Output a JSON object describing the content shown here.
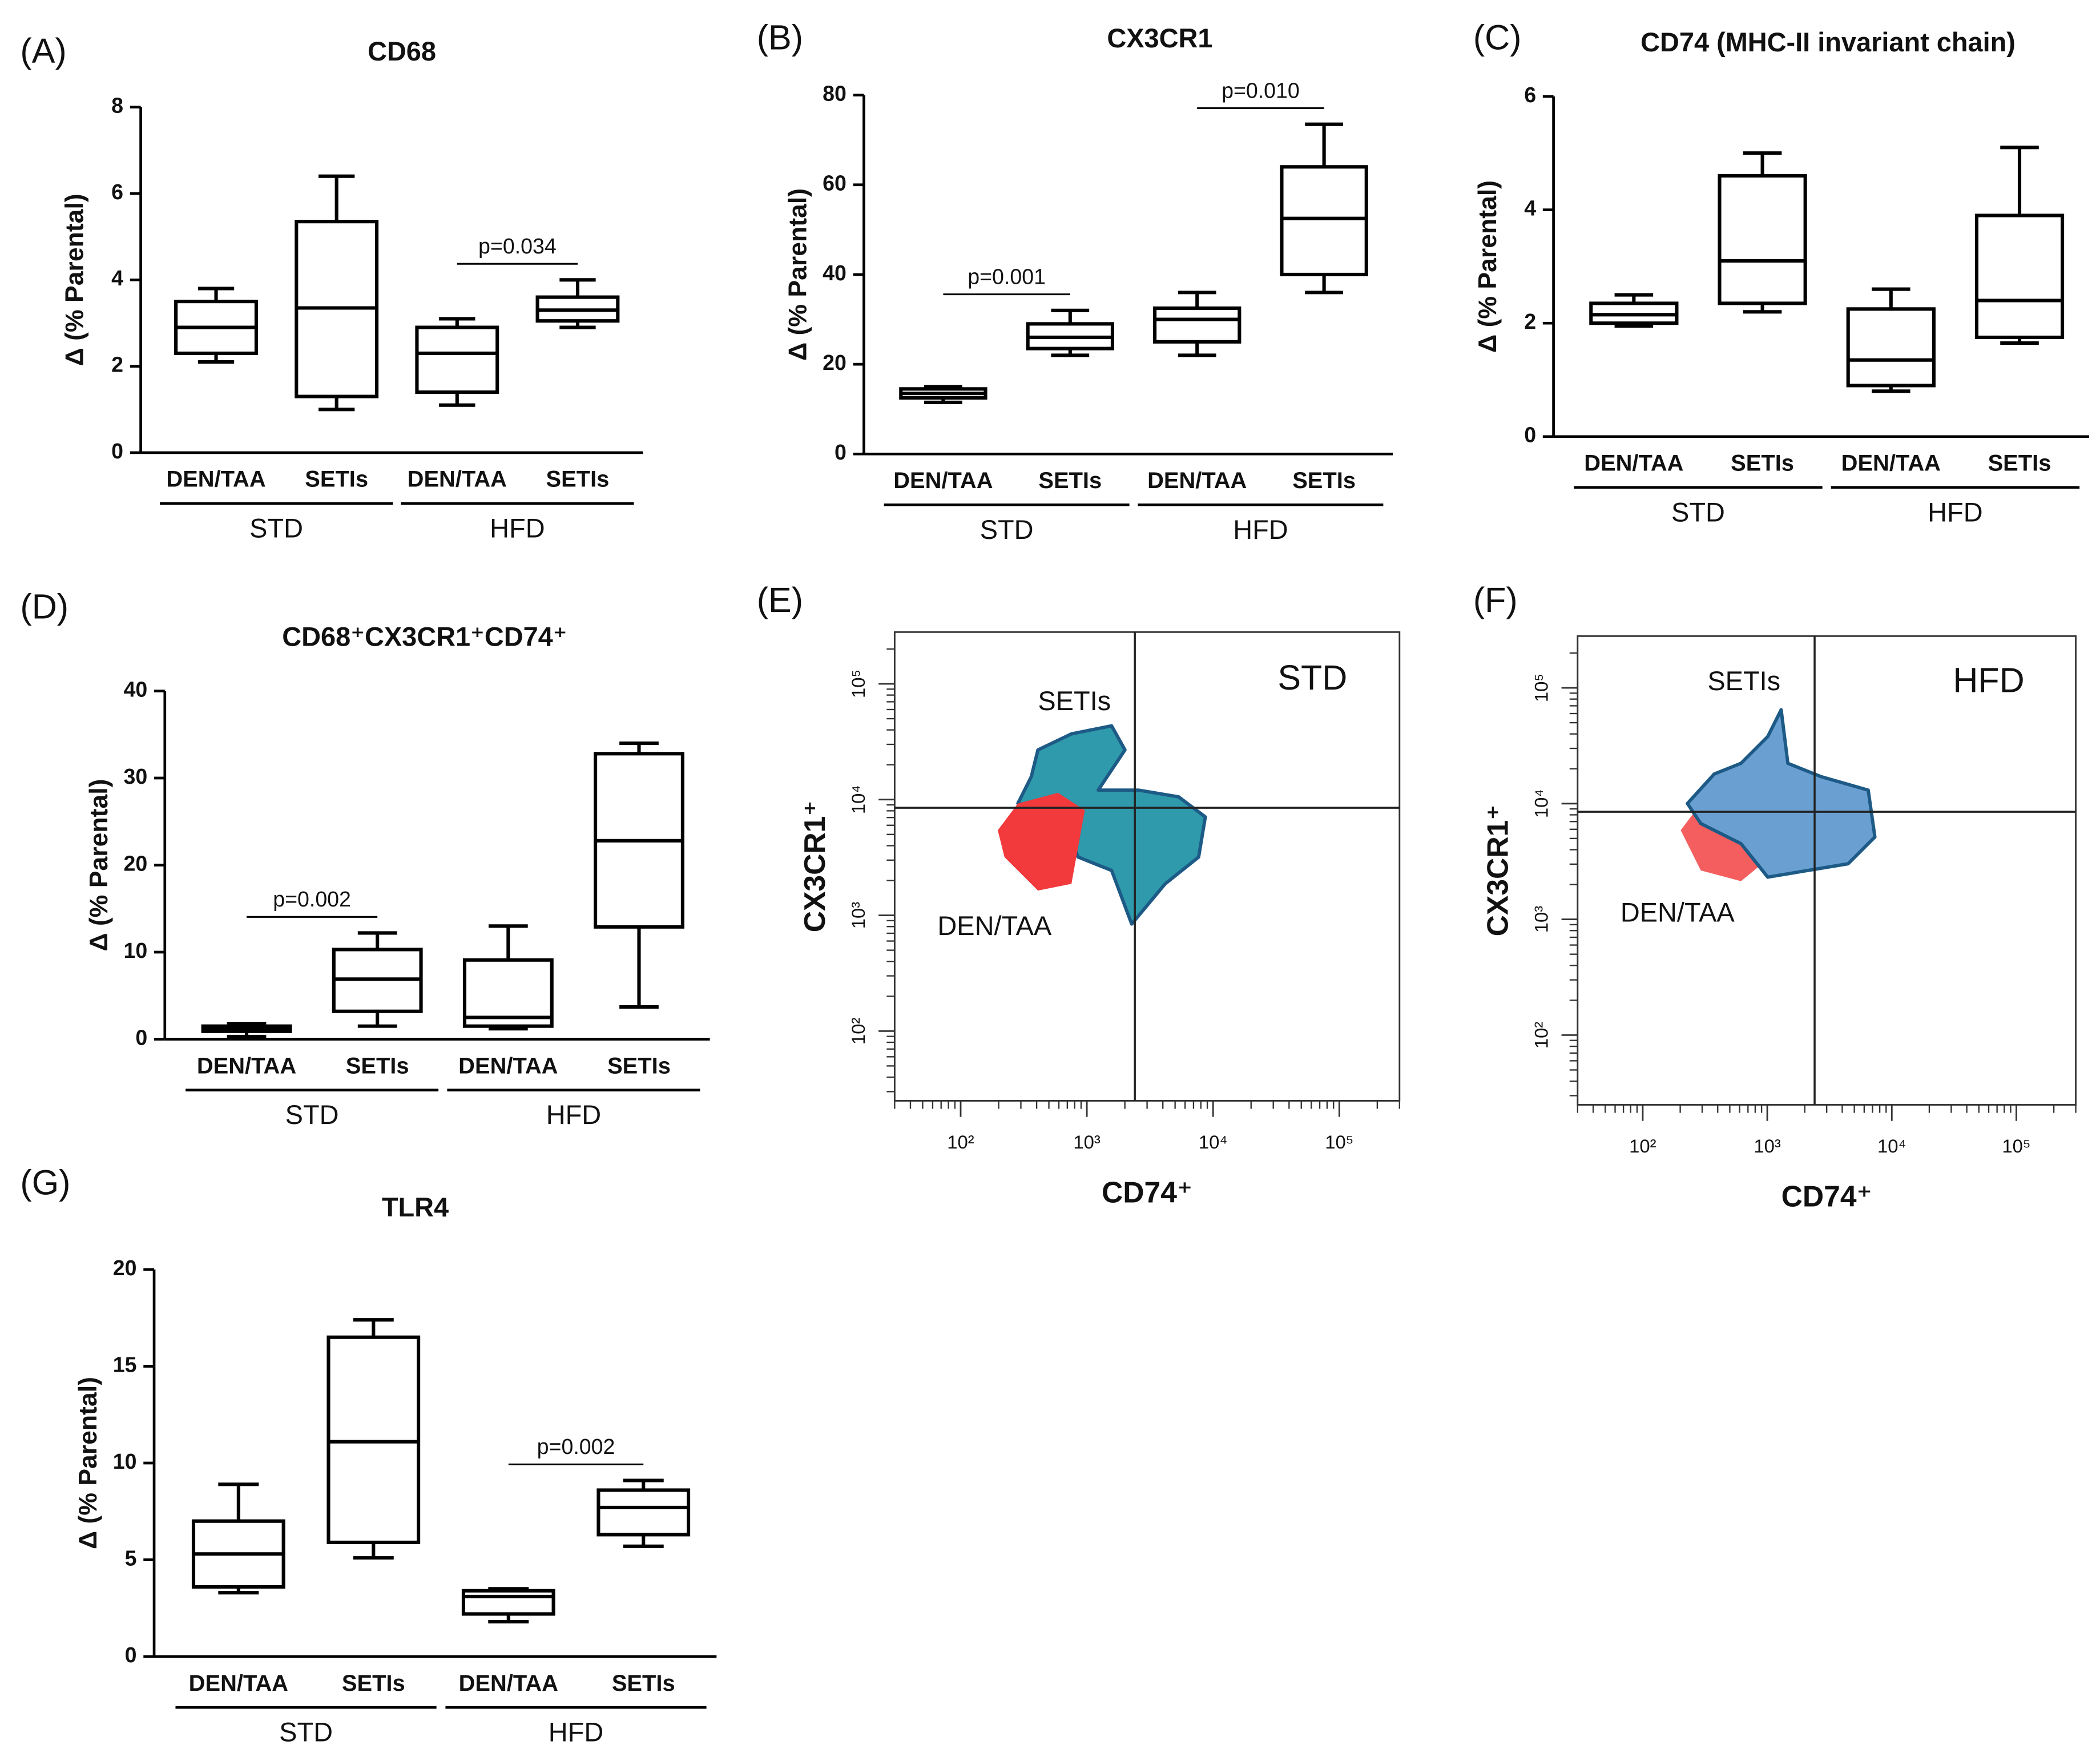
{
  "chart_data": [
    {
      "type": "box",
      "panel": "(A)",
      "title": "CD68",
      "ylabel": "Δ (% Parental)",
      "categories": [
        "DEN/TAA",
        "SETIs",
        "DEN/TAA",
        "SETIs"
      ],
      "groups": [
        {
          "name": "STD"
        },
        {
          "name": "HFD",
          "annotation": "p=0.034"
        }
      ],
      "boxes": [
        {
          "min": 2.1,
          "q1": 2.3,
          "median": 2.9,
          "q3": 3.5,
          "max": 3.8
        },
        {
          "min": 1.0,
          "q1": 1.3,
          "median": 3.35,
          "q3": 5.35,
          "max": 6.4
        },
        {
          "min": 1.1,
          "q1": 1.4,
          "median": 2.3,
          "q3": 2.9,
          "max": 3.1
        },
        {
          "min": 2.9,
          "q1": 3.05,
          "median": 3.3,
          "q3": 3.6,
          "max": 4.0
        }
      ],
      "ylim": [
        0,
        8
      ],
      "yticks": [
        0,
        2,
        4,
        6,
        8
      ]
    },
    {
      "type": "box",
      "panel": "(B)",
      "title": "CX3CR1",
      "ylabel": "Δ (% Parental)",
      "categories": [
        "DEN/TAA",
        "SETIs",
        "DEN/TAA",
        "SETIs"
      ],
      "groups": [
        {
          "name": "STD",
          "annotation": "p=0.001"
        },
        {
          "name": "HFD",
          "annotation": "p=0.010"
        }
      ],
      "boxes": [
        {
          "min": 11.5,
          "q1": 12.5,
          "median": 13.5,
          "q3": 14.5,
          "max": 15
        },
        {
          "min": 22,
          "q1": 23.5,
          "median": 26,
          "q3": 29,
          "max": 32
        },
        {
          "min": 22,
          "q1": 25,
          "median": 30,
          "q3": 32.5,
          "max": 36
        },
        {
          "min": 36,
          "q1": 40,
          "median": 52.5,
          "q3": 64,
          "max": 73.5
        }
      ],
      "ylim": [
        0,
        80
      ],
      "yticks": [
        0,
        20,
        40,
        60,
        80
      ]
    },
    {
      "type": "box",
      "panel": "(C)",
      "title": "CD74 (MHC-II invariant chain)",
      "ylabel": "Δ (% Parental)",
      "categories": [
        "DEN/TAA",
        "SETIs",
        "DEN/TAA",
        "SETIs"
      ],
      "groups": [
        {
          "name": "STD"
        },
        {
          "name": "HFD"
        }
      ],
      "boxes": [
        {
          "min": 1.95,
          "q1": 2.0,
          "median": 2.15,
          "q3": 2.35,
          "max": 2.5
        },
        {
          "min": 2.2,
          "q1": 2.35,
          "median": 3.1,
          "q3": 4.6,
          "max": 5.0
        },
        {
          "min": 0.8,
          "q1": 0.9,
          "median": 1.35,
          "q3": 2.25,
          "max": 2.6
        },
        {
          "min": 1.65,
          "q1": 1.75,
          "median": 2.4,
          "q3": 3.9,
          "max": 5.1
        }
      ],
      "ylim": [
        0,
        6
      ],
      "yticks": [
        0,
        2,
        4,
        6
      ]
    },
    {
      "type": "box",
      "panel": "(D)",
      "title": "CD68⁺CX3CR1⁺CD74⁺",
      "ylabel": "Δ (% Parental)",
      "categories": [
        "DEN/TAA",
        "SETIs",
        "DEN/TAA",
        "SETIs"
      ],
      "groups": [
        {
          "name": "STD",
          "annotation": "p=0.002"
        },
        {
          "name": "HFD"
        }
      ],
      "boxes": [
        {
          "min": 0.3,
          "q1": 0.9,
          "median": 1.2,
          "q3": 1.5,
          "max": 1.8
        },
        {
          "min": 1.5,
          "q1": 3.2,
          "median": 6.9,
          "q3": 10.3,
          "max": 12.2
        },
        {
          "min": 1.2,
          "q1": 1.5,
          "median": 2.5,
          "q3": 9.1,
          "max": 13
        },
        {
          "min": 3.7,
          "q1": 12.9,
          "median": 22.8,
          "q3": 32.8,
          "max": 34
        }
      ],
      "ylim": [
        0,
        40
      ],
      "yticks": [
        0,
        10,
        20,
        30,
        40
      ]
    },
    {
      "type": "flow",
      "panel": "(E)",
      "quadrant_label": "STD",
      "xlabel": "CD74⁺",
      "ylabel": "CX3CR1⁺",
      "series": [
        {
          "name": "SETIs",
          "color": "#2e9aab"
        },
        {
          "name": "DEN/TAA",
          "color": "#f23a3c"
        }
      ],
      "xscale": "log",
      "yscale": "log",
      "xlim": [
        30,
        300000
      ],
      "ylim": [
        25,
        280000
      ],
      "xticks": [
        {
          "value": 100,
          "label": "10²"
        },
        {
          "value": 1000,
          "label": "10³"
        },
        {
          "value": 10000,
          "label": "10⁴"
        },
        {
          "value": 100000,
          "label": "10⁵"
        }
      ],
      "yticks": [
        {
          "value": 100,
          "label": "10²"
        },
        {
          "value": 1000,
          "label": "10³"
        },
        {
          "value": 10000,
          "label": "10⁴"
        },
        {
          "value": 100000,
          "label": "10⁵"
        }
      ],
      "gates": {
        "x": 2400,
        "y": 8500
      }
    },
    {
      "type": "flow",
      "panel": "(F)",
      "quadrant_label": "HFD",
      "xlabel": "CD74⁺",
      "ylabel": "CX3CR1⁺",
      "series": [
        {
          "name": "SETIs",
          "color": "#6a9fd2"
        },
        {
          "name": "DEN/TAA",
          "color": "#f23a3c"
        }
      ],
      "xscale": "log",
      "yscale": "log",
      "xlim": [
        30,
        300000
      ],
      "ylim": [
        25,
        280000
      ],
      "xticks": [
        {
          "value": 100,
          "label": "10²"
        },
        {
          "value": 1000,
          "label": "10³"
        },
        {
          "value": 10000,
          "label": "10⁴"
        },
        {
          "value": 100000,
          "label": "10⁵"
        }
      ],
      "yticks": [
        {
          "value": 100,
          "label": "10²"
        },
        {
          "value": 1000,
          "label": "10³"
        },
        {
          "value": 10000,
          "label": "10⁴"
        },
        {
          "value": 100000,
          "label": "10⁵"
        }
      ],
      "gates": {
        "x": 2400,
        "y": 8500
      }
    },
    {
      "type": "box",
      "panel": "(G)",
      "title": "TLR4",
      "ylabel": "Δ (% Parental)",
      "categories": [
        "DEN/TAA",
        "SETIs",
        "DEN/TAA",
        "SETIs"
      ],
      "groups": [
        {
          "name": "STD"
        },
        {
          "name": "HFD",
          "annotation": "p=0.002"
        }
      ],
      "boxes": [
        {
          "min": 3.3,
          "q1": 3.6,
          "median": 5.3,
          "q3": 7.0,
          "max": 8.9
        },
        {
          "min": 5.1,
          "q1": 5.9,
          "median": 11.1,
          "q3": 16.5,
          "max": 17.4
        },
        {
          "min": 1.8,
          "q1": 2.2,
          "median": 3.1,
          "q3": 3.4,
          "max": 3.5
        },
        {
          "min": 5.7,
          "q1": 6.3,
          "median": 7.7,
          "q3": 8.6,
          "max": 9.1
        }
      ],
      "ylim": [
        0,
        20
      ],
      "yticks": [
        0,
        5,
        10,
        15,
        20
      ]
    }
  ]
}
